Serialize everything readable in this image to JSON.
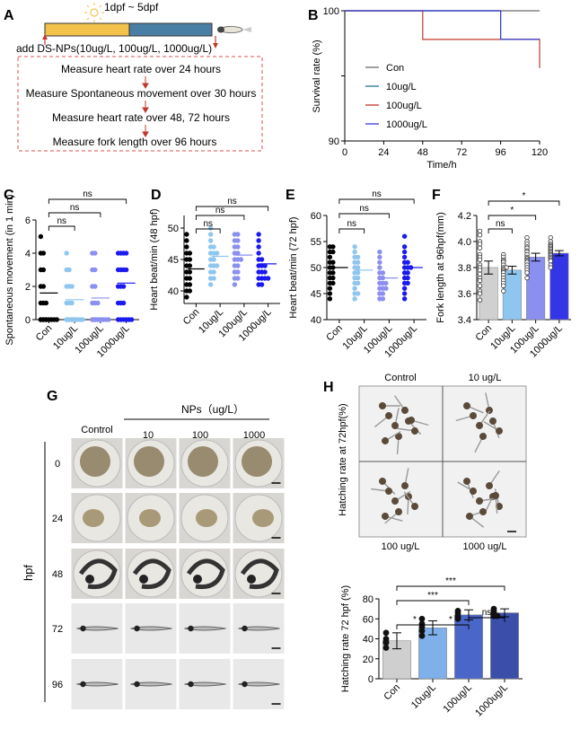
{
  "panel_labels": [
    "A",
    "B",
    "C",
    "D",
    "E",
    "F",
    "G",
    "H"
  ],
  "panelA": {
    "timeline": "1dpf ~ 5dpf",
    "add": "add DS-NPs(10ug/L, 100ug/L, 1000ug/L)",
    "steps": [
      "Measure heart rate over 24 hours",
      "Measure Spontaneous movement over 30 hours",
      "Measure heart rate over 48, 72 hours",
      "Measure fork length over 96 hours"
    ],
    "colors": {
      "bar_light": "#f2c24b",
      "bar_dark": "#4a7fa5",
      "box": "#d9534f"
    }
  },
  "chart_data": [
    {
      "id": "B",
      "type": "line",
      "title": "",
      "xlabel": "Time/h",
      "ylabel": "Survival rate (%)",
      "xticks": [
        0,
        24,
        48,
        72,
        96,
        120
      ],
      "yticks": [
        90,
        "",
        100
      ],
      "ylim": [
        90,
        100
      ],
      "xlim": [
        0,
        120
      ],
      "series": [
        {
          "name": "Con",
          "color": "#6b6b6b",
          "steps": [
            [
              0,
              100
            ],
            [
              120,
              100
            ]
          ]
        },
        {
          "name": "10ug/L",
          "color": "#1f7a8c",
          "steps": [
            [
              0,
              100
            ],
            [
              96,
              100
            ],
            [
              96,
              97.8
            ],
            [
              120,
              97.8
            ]
          ]
        },
        {
          "name": "100ug/L",
          "color": "#c0392b",
          "steps": [
            [
              0,
              100
            ],
            [
              48,
              100
            ],
            [
              48,
              97.8
            ],
            [
              120,
              97.8
            ],
            [
              120,
              95.6
            ]
          ]
        },
        {
          "name": "1000ug/L",
          "color": "#3b3bd6",
          "steps": [
            [
              0,
              100
            ],
            [
              96,
              100
            ],
            [
              96,
              97.8
            ],
            [
              120,
              97.8
            ]
          ]
        }
      ]
    },
    {
      "id": "C",
      "type": "scatter",
      "ylabel": "Spontaneous movement (in 1 min)",
      "categories": [
        "Con",
        "10ug/L",
        "100ug/L",
        "1000ug/L"
      ],
      "ylim": [
        0,
        6
      ],
      "yticks": [
        0,
        2,
        4,
        6
      ],
      "means": [
        1.6,
        1.2,
        1.3,
        2.2
      ],
      "colors": [
        "#000000",
        "#8fc6f0",
        "#8a8ff0",
        "#1a1af0"
      ],
      "points": [
        [
          5,
          4,
          4,
          3,
          3,
          2,
          2,
          1,
          1,
          1,
          0,
          0,
          0,
          0,
          0,
          0,
          0,
          0,
          0,
          0
        ],
        [
          4,
          3,
          3,
          2,
          2,
          2,
          1,
          1,
          1,
          0,
          0,
          0,
          0,
          0,
          0,
          0,
          0,
          0,
          0,
          0
        ],
        [
          4,
          4,
          3,
          3,
          2,
          2,
          1,
          1,
          1,
          0,
          0,
          0,
          0,
          0,
          0,
          0,
          0,
          0,
          0,
          0
        ],
        [
          4,
          4,
          4,
          4,
          3,
          3,
          3,
          3,
          2,
          2,
          2,
          1,
          1,
          1,
          0,
          0,
          0,
          0,
          0,
          0
        ]
      ],
      "sig": [
        {
          "a": 0,
          "b": 1,
          "text": "ns"
        },
        {
          "a": 0,
          "b": 2,
          "text": "ns"
        },
        {
          "a": 0,
          "b": 3,
          "text": "ns"
        }
      ]
    },
    {
      "id": "D",
      "type": "scatter",
      "ylabel": "Heart beat/min (48 hpf)",
      "categories": [
        "Con",
        "10ug/L",
        "100ug/L",
        "1000ug/L"
      ],
      "ylim": [
        38,
        52
      ],
      "yticks": [
        40,
        45,
        50
      ],
      "means": [
        43.5,
        45.5,
        45.7,
        44.3
      ],
      "colors": [
        "#000000",
        "#8fc6f0",
        "#8a8ff0",
        "#1a1af0"
      ],
      "points": [
        [
          49,
          48,
          47,
          46,
          46,
          45,
          45,
          44,
          44,
          43,
          43,
          42,
          42,
          41,
          41,
          40,
          40,
          39
        ],
        [
          50,
          49,
          48,
          47,
          47,
          46,
          46,
          46,
          45,
          45,
          44,
          44,
          44,
          43,
          43,
          42,
          42,
          41
        ],
        [
          49,
          49,
          48,
          48,
          47,
          47,
          46,
          46,
          45,
          45,
          45,
          44,
          44,
          43,
          43,
          42,
          42,
          41
        ],
        [
          49,
          48,
          47,
          46,
          45,
          45,
          44,
          44,
          44,
          43,
          43,
          43,
          42,
          42,
          42,
          42,
          41,
          41
        ]
      ],
      "sig": [
        {
          "a": 0,
          "b": 1,
          "text": "ns"
        },
        {
          "a": 0,
          "b": 2,
          "text": "ns"
        },
        {
          "a": 0,
          "b": 3,
          "text": "ns"
        }
      ]
    },
    {
      "id": "E",
      "type": "scatter",
      "ylabel": "Heart beat/min (72 hpf)",
      "categories": [
        "Con",
        "10ug/L",
        "100ug/L",
        "1000ug/L"
      ],
      "ylim": [
        40,
        60
      ],
      "yticks": [
        40,
        45,
        50,
        55,
        60
      ],
      "means": [
        50,
        49.5,
        48,
        50
      ],
      "colors": [
        "#000000",
        "#8fc6f0",
        "#8a8ff0",
        "#1a1af0"
      ],
      "points": [
        [
          54,
          54,
          53,
          53,
          52,
          51,
          51,
          50,
          50,
          49,
          49,
          48,
          48,
          47,
          47,
          46,
          45,
          44
        ],
        [
          54,
          53,
          52,
          52,
          51,
          51,
          50,
          50,
          49,
          49,
          48,
          48,
          47,
          47,
          46,
          45,
          45,
          44
        ],
        [
          53,
          52,
          51,
          50,
          49,
          49,
          48,
          48,
          47,
          47,
          47,
          46,
          46,
          46,
          45,
          45,
          44,
          44
        ],
        [
          56,
          54,
          53,
          52,
          51,
          51,
          50,
          50,
          50,
          49,
          49,
          48,
          48,
          47,
          47,
          46,
          45,
          44
        ]
      ],
      "sig": [
        {
          "a": 0,
          "b": 1,
          "text": "ns"
        },
        {
          "a": 0,
          "b": 2,
          "text": "ns"
        },
        {
          "a": 0,
          "b": 3,
          "text": "ns"
        }
      ]
    },
    {
      "id": "F",
      "type": "bar",
      "ylabel": "Fork length at 96hpf(mm)",
      "categories": [
        "Con",
        "10ug/L",
        "100ug/L",
        "1000ug/L"
      ],
      "ylim": [
        3.4,
        4.2
      ],
      "yticks": [
        3.4,
        3.6,
        3.8,
        4.0,
        4.2
      ],
      "values": [
        3.8,
        3.78,
        3.88,
        3.91
      ],
      "errors": [
        0.05,
        0.03,
        0.03,
        0.02
      ],
      "colors": [
        "#d0d0d0",
        "#8fc6f0",
        "#8a8ff0",
        "#3535e8"
      ],
      "points": [
        [
          4.08,
          4.05,
          4.0,
          3.98,
          3.95,
          3.9,
          3.88,
          3.86,
          3.82,
          3.8,
          3.78,
          3.75,
          3.72,
          3.7,
          3.66,
          3.62,
          3.6,
          3.55
        ],
        [
          3.9,
          3.88,
          3.86,
          3.85,
          3.84,
          3.82,
          3.8,
          3.8,
          3.79,
          3.78,
          3.77,
          3.76,
          3.74,
          3.72,
          3.7,
          3.68,
          3.66,
          3.62
        ],
        [
          4.03,
          4.0,
          3.98,
          3.96,
          3.95,
          3.93,
          3.92,
          3.9,
          3.88,
          3.87,
          3.86,
          3.85,
          3.84,
          3.82,
          3.8,
          3.78,
          3.76,
          3.72
        ],
        [
          4.03,
          4.0,
          3.98,
          3.97,
          3.96,
          3.95,
          3.94,
          3.93,
          3.92,
          3.91,
          3.9,
          3.89,
          3.88,
          3.87,
          3.86,
          3.85,
          3.82,
          3.8
        ]
      ],
      "sig": [
        {
          "a": 0,
          "b": 1,
          "text": "ns"
        },
        {
          "a": 0,
          "b": 2,
          "text": "*"
        },
        {
          "a": 0,
          "b": 3,
          "text": "*"
        }
      ]
    },
    {
      "id": "H",
      "type": "bar",
      "ylabel": "Hatching rate 72 hpf (%)",
      "categories": [
        "Con",
        "10ug/L",
        "100ug/L",
        "1000ug/L"
      ],
      "ylim": [
        0,
        80
      ],
      "yticks": [
        0,
        20,
        40,
        60,
        80
      ],
      "values": [
        38,
        51,
        64,
        66
      ],
      "errors": [
        8,
        7,
        5,
        4
      ],
      "colors": [
        "#cfcfcf",
        "#7fb0ea",
        "#4a66c8",
        "#3a4eaa"
      ],
      "points": [
        [
          46,
          40,
          37,
          31,
          36
        ],
        [
          60,
          55,
          48,
          43,
          52
        ],
        [
          68,
          66,
          63,
          60,
          62
        ],
        [
          70,
          68,
          66,
          63,
          63
        ]
      ],
      "sig": [
        {
          "a": 0,
          "b": 1,
          "text": "*"
        },
        {
          "a": 1,
          "b": 2,
          "text": "*"
        },
        {
          "a": 0,
          "b": 2,
          "text": "***"
        },
        {
          "a": 2,
          "b": 3,
          "text": "ns"
        },
        {
          "a": 0,
          "b": 3,
          "text": "***"
        }
      ]
    }
  ],
  "panelG": {
    "nps_label": "NPs（ug/L）",
    "columns": [
      "Control",
      "10",
      "100",
      "1000"
    ],
    "rows": [
      "0",
      "24",
      "48",
      "72",
      "96"
    ],
    "axis_label": "hpf"
  },
  "panelH": {
    "side_label": "Hatching rate at 72hpf(%)",
    "quad_labels": [
      "Control",
      "10 ug/L",
      "100 ug/L",
      "1000 ug/L"
    ]
  }
}
